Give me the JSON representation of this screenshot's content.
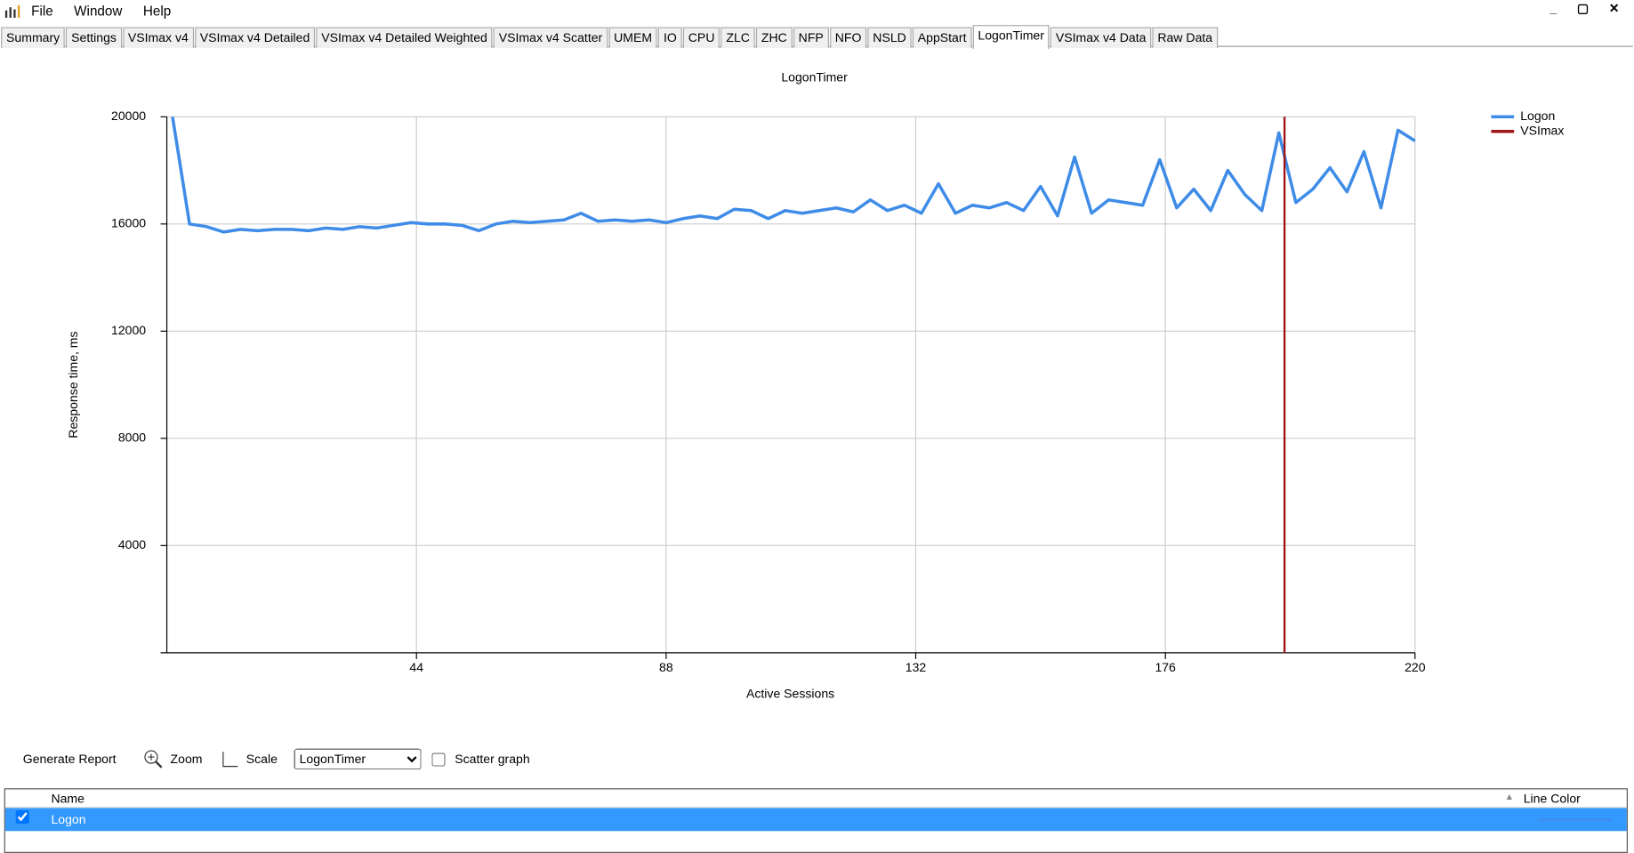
{
  "menu": [
    "File",
    "Window",
    "Help"
  ],
  "tabs": [
    "Summary",
    "Settings",
    "VSImax v4",
    "VSImax v4 Detailed",
    "VSImax v4 Detailed Weighted",
    "VSImax v4 Scatter",
    "UMEM",
    "IO",
    "CPU",
    "ZLC",
    "ZHC",
    "NFP",
    "NFO",
    "NSLD",
    "AppStart",
    "LogonTimer",
    "VSImax v4 Data",
    "Raw Data"
  ],
  "active_tab": 15,
  "chart_data": {
    "type": "line",
    "title": "LogonTimer",
    "x_label": "Active Sessions",
    "y_label": "Response time, ms",
    "x": [
      1,
      4,
      7,
      10,
      13,
      16,
      19,
      22,
      25,
      28,
      31,
      34,
      37,
      40,
      43,
      46,
      49,
      52,
      55,
      58,
      61,
      64,
      67,
      70,
      73,
      76,
      79,
      82,
      85,
      88,
      91,
      94,
      97,
      100,
      103,
      106,
      109,
      112,
      115,
      118,
      121,
      124,
      127,
      130,
      133,
      136,
      139,
      142,
      145,
      148,
      151,
      154,
      157,
      160,
      163,
      166,
      169,
      172,
      175,
      178,
      181,
      184,
      187,
      190,
      193,
      196,
      199,
      202,
      205,
      208,
      211,
      214,
      217,
      220
    ],
    "series": [
      {
        "name": "Logon",
        "color": "#3f8ce8",
        "values": [
          20000,
          16000,
          15900,
          15700,
          15800,
          15750,
          15800,
          15800,
          15750,
          15850,
          15800,
          15900,
          15850,
          15950,
          16050,
          16000,
          16000,
          15950,
          15750,
          16000,
          16100,
          16050,
          16100,
          16150,
          16400,
          16100,
          16150,
          16100,
          16150,
          16050,
          16200,
          16300,
          16200,
          16550,
          16500,
          16200,
          16500,
          16400,
          16500,
          16600,
          16450,
          16900,
          16500,
          16700,
          16400,
          17500,
          16400,
          16700,
          16600,
          16800,
          16500,
          17400,
          16300,
          18500,
          16400,
          16900,
          16800,
          16700,
          18400,
          16600,
          17300,
          16500,
          18000,
          17100,
          16500,
          19400,
          16800,
          17300,
          18100,
          17200,
          18700,
          16600,
          19500,
          19100
        ]
      }
    ],
    "vsimax": {
      "name": "VSImax",
      "color": "#a01515",
      "x": 197
    },
    "xlim": [
      0,
      220
    ],
    "xticks": [
      44,
      88,
      132,
      176,
      220
    ],
    "ylim": [
      0,
      20000
    ],
    "yticks": [
      4000,
      8000,
      12000,
      16000,
      20000
    ],
    "grid": true,
    "legend": "right"
  },
  "toolbar": {
    "generate": "Generate Report",
    "zoom": "Zoom",
    "scale": "Scale",
    "select": "LogonTimer",
    "scatter": "Scatter graph",
    "scatter_checked": false
  },
  "table": {
    "headers": [
      "Name",
      "Line Color"
    ],
    "rows": [
      {
        "name": "Logon",
        "checked": true
      }
    ]
  }
}
